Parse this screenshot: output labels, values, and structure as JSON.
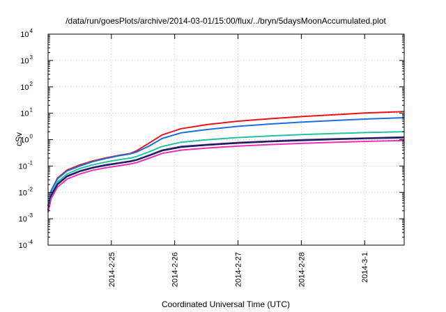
{
  "chart_data": {
    "type": "line",
    "title": "/data/run/goesPlots/archive/2014-03-01/15:00/flux/../bryn/5daysMoonAccumulated.plot",
    "xlabel": "Coordinated Universal Time (UTC)",
    "ylabel": "cSv",
    "y_scale": "log",
    "ylim": [
      0.0001,
      10000
    ],
    "y_ticks": [
      {
        "value": 0.0001,
        "base": "10",
        "exp": "-4"
      },
      {
        "value": 0.001,
        "base": "10",
        "exp": "-3"
      },
      {
        "value": 0.01,
        "base": "10",
        "exp": "-2"
      },
      {
        "value": 0.1,
        "base": "10",
        "exp": "-1"
      },
      {
        "value": 1,
        "base": "10",
        "exp": "0"
      },
      {
        "value": 10,
        "base": "10",
        "exp": "1"
      },
      {
        "value": 100,
        "base": "10",
        "exp": "2"
      },
      {
        "value": 1000,
        "base": "10",
        "exp": "3"
      },
      {
        "value": 10000,
        "base": "10",
        "exp": "4"
      }
    ],
    "xlim": [
      "2014-02-24T00:00",
      "2014-03-01T15:00"
    ],
    "x_ticks": [
      {
        "value": "2014-02-25T00:00",
        "label": "2014-2-25"
      },
      {
        "value": "2014-02-26T00:00",
        "label": "2014-2-26"
      },
      {
        "value": "2014-02-27T00:00",
        "label": "2014-2-27"
      },
      {
        "value": "2014-02-28T00:00",
        "label": "2014-2-28"
      },
      {
        "value": "2014-03-01T00:00",
        "label": "2014-3-1"
      }
    ],
    "grid": true,
    "legend": "none",
    "series": [
      {
        "color": "#e8141b",
        "x": [
          "2014-02-24T00:00",
          "2014-02-24T01:12",
          "2014-02-24T03:36",
          "2014-02-24T07:12",
          "2014-02-24T12:00",
          "2014-02-24T16:48",
          "2014-02-24T21:36",
          "2014-02-25T02:24",
          "2014-02-25T07:12",
          "2014-02-25T09:36",
          "2014-02-25T14:24",
          "2014-02-25T19:12",
          "2014-02-26T02:24",
          "2014-02-26T12:00",
          "2014-02-27T00:00",
          "2014-02-27T12:00",
          "2014-02-28T00:00",
          "2014-02-28T12:00",
          "2014-03-01T00:00",
          "2014-03-01T15:00"
        ],
        "y": [
          0.003,
          0.012,
          0.035,
          0.07,
          0.11,
          0.155,
          0.2,
          0.25,
          0.3,
          0.38,
          0.75,
          1.5,
          2.6,
          3.7,
          5.0,
          6.2,
          7.5,
          8.7,
          10.2,
          11.5
        ]
      },
      {
        "color": "#1a6fe0",
        "x": [
          "2014-02-24T00:00",
          "2014-02-24T01:12",
          "2014-02-24T03:36",
          "2014-02-24T07:12",
          "2014-02-24T12:00",
          "2014-02-24T16:48",
          "2014-02-24T21:36",
          "2014-02-25T02:24",
          "2014-02-25T07:12",
          "2014-02-25T09:36",
          "2014-02-25T14:24",
          "2014-02-25T19:12",
          "2014-02-26T02:24",
          "2014-02-26T12:00",
          "2014-02-27T00:00",
          "2014-02-27T12:00",
          "2014-02-28T00:00",
          "2014-02-28T12:00",
          "2014-03-01T00:00",
          "2014-03-01T15:00"
        ],
        "y": [
          0.003,
          0.012,
          0.033,
          0.065,
          0.1,
          0.145,
          0.19,
          0.24,
          0.29,
          0.34,
          0.58,
          1.1,
          1.8,
          2.4,
          3.2,
          3.9,
          4.6,
          5.3,
          6.0,
          6.8
        ]
      },
      {
        "color": "#20c4a0",
        "x": [
          "2014-02-24T00:00",
          "2014-02-24T01:12",
          "2014-02-24T03:36",
          "2014-02-24T07:12",
          "2014-02-24T12:00",
          "2014-02-24T16:48",
          "2014-02-24T21:36",
          "2014-02-25T02:24",
          "2014-02-25T07:12",
          "2014-02-25T09:36",
          "2014-02-25T14:24",
          "2014-02-25T19:12",
          "2014-02-26T02:24",
          "2014-02-26T12:00",
          "2014-02-27T00:00",
          "2014-02-27T12:00",
          "2014-02-28T00:00",
          "2014-02-28T12:00",
          "2014-03-01T00:00",
          "2014-03-01T15:00"
        ],
        "y": [
          0.0025,
          0.009,
          0.025,
          0.05,
          0.08,
          0.11,
          0.14,
          0.17,
          0.2,
          0.23,
          0.35,
          0.55,
          0.8,
          0.98,
          1.2,
          1.38,
          1.55,
          1.7,
          1.85,
          2.0
        ]
      },
      {
        "color": "#5a2a8c",
        "x": [
          "2014-02-24T00:00",
          "2014-02-24T01:12",
          "2014-02-24T03:36",
          "2014-02-24T07:12",
          "2014-02-24T12:00",
          "2014-02-24T16:48",
          "2014-02-24T21:36",
          "2014-02-25T02:24",
          "2014-02-25T07:12",
          "2014-02-25T09:36",
          "2014-02-25T14:24",
          "2014-02-25T19:12",
          "2014-02-26T02:24",
          "2014-02-26T12:00",
          "2014-02-27T00:00",
          "2014-02-27T12:00",
          "2014-02-28T00:00",
          "2014-02-28T12:00",
          "2014-03-01T00:00",
          "2014-03-01T15:00"
        ],
        "y": [
          0.0022,
          0.008,
          0.021,
          0.042,
          0.065,
          0.088,
          0.11,
          0.13,
          0.155,
          0.175,
          0.26,
          0.4,
          0.55,
          0.65,
          0.78,
          0.88,
          0.98,
          1.07,
          1.15,
          1.25
        ]
      },
      {
        "color": "#1b1c5c",
        "x": [
          "2014-02-24T00:00",
          "2014-02-24T01:12",
          "2014-02-24T03:36",
          "2014-02-24T07:12",
          "2014-02-24T12:00",
          "2014-02-24T16:48",
          "2014-02-24T21:36",
          "2014-02-25T02:24",
          "2014-02-25T07:12",
          "2014-02-25T09:36",
          "2014-02-25T14:24",
          "2014-02-25T19:12",
          "2014-02-26T02:24",
          "2014-02-26T12:00",
          "2014-02-27T00:00",
          "2014-02-27T12:00",
          "2014-02-28T00:00",
          "2014-02-28T12:00",
          "2014-03-01T00:00",
          "2014-03-01T15:00"
        ],
        "y": [
          0.0021,
          0.0075,
          0.02,
          0.04,
          0.062,
          0.084,
          0.105,
          0.125,
          0.148,
          0.168,
          0.25,
          0.38,
          0.52,
          0.62,
          0.74,
          0.84,
          0.93,
          1.02,
          1.1,
          1.18
        ]
      },
      {
        "color": "#e830b8",
        "x": [
          "2014-02-24T00:00",
          "2014-02-24T01:12",
          "2014-02-24T03:36",
          "2014-02-24T07:12",
          "2014-02-24T12:00",
          "2014-02-24T16:48",
          "2014-02-24T21:36",
          "2014-02-25T02:24",
          "2014-02-25T07:12",
          "2014-02-25T09:36",
          "2014-02-25T14:24",
          "2014-02-25T19:12",
          "2014-02-26T02:24",
          "2014-02-26T12:00",
          "2014-02-27T00:00",
          "2014-02-27T12:00",
          "2014-02-28T00:00",
          "2014-02-28T12:00",
          "2014-03-01T00:00",
          "2014-03-01T15:00"
        ],
        "y": [
          0.0018,
          0.006,
          0.016,
          0.032,
          0.05,
          0.068,
          0.085,
          0.1,
          0.12,
          0.135,
          0.2,
          0.3,
          0.4,
          0.48,
          0.57,
          0.65,
          0.72,
          0.79,
          0.86,
          0.93
        ]
      }
    ]
  }
}
